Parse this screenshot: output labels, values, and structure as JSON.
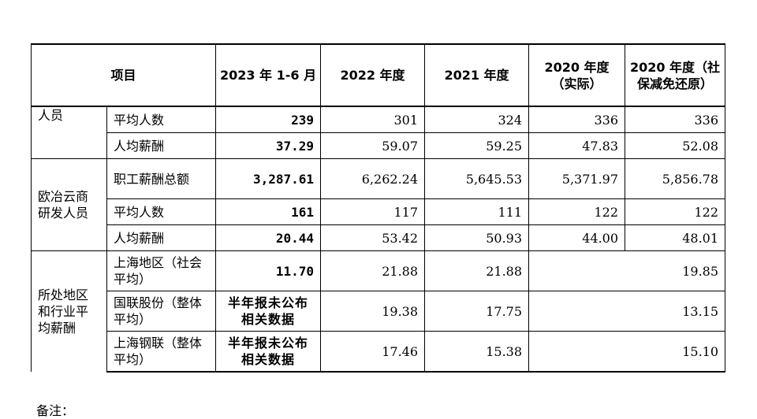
{
  "header": {
    "col_item": "项目",
    "col_2023": "2023 年 1-6 月",
    "col_2022": "2022 年度",
    "col_2021": "2021 年度",
    "col_2020_actual": "2020 年度（实际）",
    "col_2020_restored": "2020 年度（社保减免还原）"
  },
  "groups": {
    "g1": "人员",
    "g2": "欧冶云商研发人员",
    "g3": "所处地区和行业平均薪酬"
  },
  "rows": [
    {
      "item": "平均人数",
      "v2023": "239",
      "v2022": "301",
      "v2021": "324",
      "v2020a": "336",
      "v2020r": "336"
    },
    {
      "item": "人均薪酬",
      "v2023": "37.29",
      "v2022": "59.07",
      "v2021": "59.25",
      "v2020a": "47.83",
      "v2020r": "52.08"
    },
    {
      "item": "职工薪酬总额",
      "v2023": "3,287.61",
      "v2022": "6,262.24",
      "v2021": "5,645.53",
      "v2020a": "5,371.97",
      "v2020r": "5,856.78"
    },
    {
      "item": "平均人数",
      "v2023": "161",
      "v2022": "117",
      "v2021": "111",
      "v2020a": "122",
      "v2020r": "122"
    },
    {
      "item": "人均薪酬",
      "v2023": "20.44",
      "v2022": "53.42",
      "v2021": "50.93",
      "v2020a": "44.00",
      "v2020r": "48.01"
    },
    {
      "item": "上海地区（社会平均）",
      "v2023": "11.70",
      "v2022": "21.88",
      "v2021": "21.88",
      "v2020": "19.85"
    },
    {
      "item": "国联股份（整体平均）",
      "v2023": "半年报未公布相关数据",
      "v2022": "19.38",
      "v2021": "17.75",
      "v2020": "13.15"
    },
    {
      "item": "上海钢联（整体平均）",
      "v2023": "半年报未公布相关数据",
      "v2022": "17.46",
      "v2021": "15.38",
      "v2020": "15.10"
    }
  ],
  "note": "备注："
}
